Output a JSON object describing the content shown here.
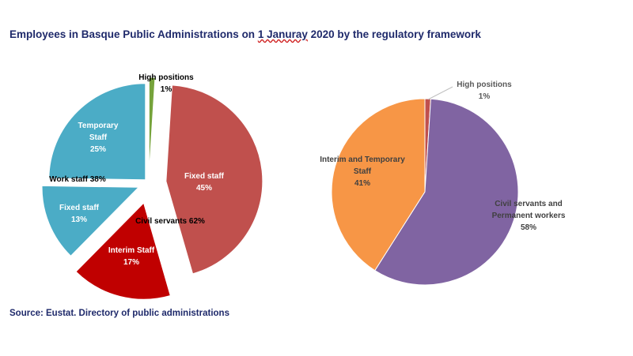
{
  "title": {
    "before": "Employees in Basque Public Administrations on ",
    "underlined": "1 Januray",
    "after": " 2020 by the regulatory framework"
  },
  "source": "Source: Eustat. Directory of public administrations",
  "colors": {
    "high_positions": "#76a33b",
    "fixed_staff_civil": "#c0504d",
    "interim_staff": "#c00000",
    "fixed_staff_work": "#4bacc6",
    "temporary_staff": "#4bacc6",
    "right_high": "#c0504d",
    "right_civil": "#8064a2",
    "right_interim": "#f79646"
  },
  "chart_data": [
    {
      "type": "pie",
      "title": "",
      "slices": [
        {
          "name": "High positions",
          "value": 1,
          "label": "High positions",
          "pct": "1%"
        },
        {
          "name": "Fixed staff (civil servants)",
          "value": 45,
          "label": "Fixed staff",
          "pct": "45%"
        },
        {
          "name": "Interim Staff",
          "value": 17,
          "label": "Interim Staff",
          "pct": "17%"
        },
        {
          "name": "Fixed staff (work staff)",
          "value": 13,
          "label": "Fixed staff",
          "pct": "13%"
        },
        {
          "name": "Temporary Staff",
          "value": 25,
          "label": "Temporary Staff",
          "pct": "25%"
        }
      ],
      "group_labels": [
        {
          "name": "Civil servants",
          "pct": "62%",
          "text": "Civil servants  62%"
        },
        {
          "name": "Work staff",
          "pct": "38%",
          "text": "Work staff  38%"
        }
      ]
    },
    {
      "type": "pie",
      "title": "",
      "slices": [
        {
          "name": "High positions",
          "value": 1,
          "label": "High positions",
          "pct": "1%"
        },
        {
          "name": "Civil servants and Permanent workers",
          "value": 58,
          "label_lines": [
            "Civil servants and",
            "Permanent workers"
          ],
          "pct": "58%"
        },
        {
          "name": "Interim and Temporary Staff",
          "value": 41,
          "label_lines": [
            "Interim  and Temporary",
            "Staff"
          ],
          "pct": "41%"
        }
      ]
    }
  ]
}
